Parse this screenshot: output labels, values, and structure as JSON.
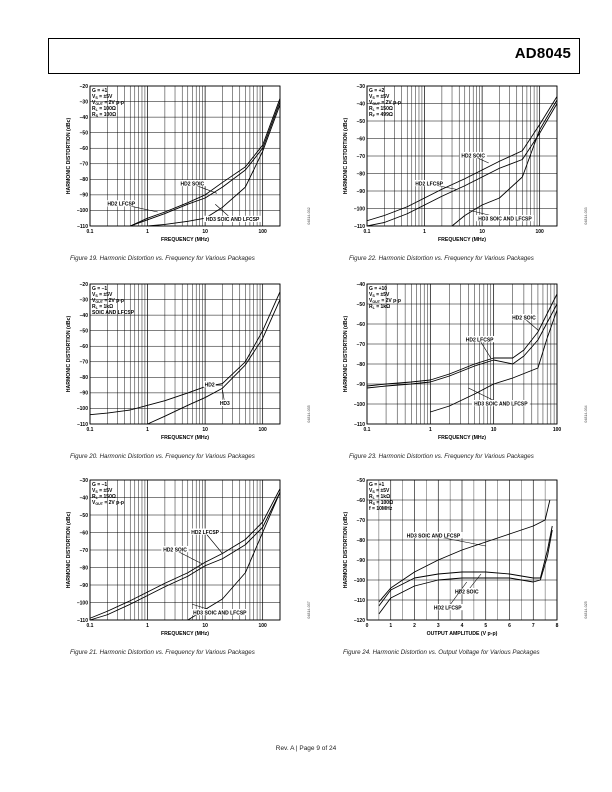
{
  "header": {
    "part_number": "AD8045"
  },
  "footer": {
    "text": "Rev. A | Page 9 of 24"
  },
  "chart_data": [
    {
      "type": "line",
      "id": "fig19",
      "xscale": "log",
      "xlim": [
        0.1,
        200
      ],
      "ylim": [
        -110,
        -20
      ],
      "xticks": [
        {
          "v": 0.1,
          "t": "0.1"
        },
        {
          "v": 1,
          "t": "1"
        },
        {
          "v": 10,
          "t": "10"
        },
        {
          "v": 100,
          "t": "100"
        }
      ],
      "yticks": [
        -110,
        -100,
        -90,
        -80,
        -70,
        -60,
        -50,
        -40,
        -30,
        -20
      ],
      "xlabel": "FREQUENCY (MHz)",
      "ylabel": "HARMONIC DISTORTION (dBc)",
      "conditions": [
        "G = +1",
        "VS = ±5V",
        "VOUT = 2V p-p",
        "RL = 100Ω",
        "RS = 100Ω"
      ],
      "code": "04814-032",
      "caption": "Figure 19. Harmonic Distortion vs. Frequency for Various Packages",
      "series": [
        {
          "name": "HD2 SOIC",
          "x": [
            0.5,
            1,
            2,
            5,
            10,
            20,
            50,
            100,
            200
          ],
          "y": [
            -110,
            -105,
            -101,
            -95,
            -90,
            -82,
            -72,
            -58,
            -28
          ]
        },
        {
          "name": "HD2 LFCSP",
          "x": [
            0.5,
            1,
            2,
            5,
            10,
            20,
            50,
            100,
            200
          ],
          "y": [
            -110,
            -106,
            -102,
            -96,
            -92,
            -85,
            -74,
            -60,
            -30
          ]
        },
        {
          "name": "HD3 SOIC AND LFCSP",
          "x": [
            1,
            2,
            5,
            10,
            20,
            50,
            100,
            200
          ],
          "y": [
            -110,
            -109,
            -107,
            -105,
            -98,
            -85,
            -62,
            -32
          ]
        }
      ],
      "annotations": [
        {
          "text": "HD2 SOIC",
          "x": 6,
          "y": -83,
          "px": 16,
          "py": -89
        },
        {
          "text": "HD2 LFCSP",
          "x": 0.35,
          "y": -96,
          "px": 1.5,
          "py": -101
        },
        {
          "text": "HD3 SOIC AND LFCSP",
          "x": 30,
          "y": -106,
          "px": 15,
          "py": -96
        }
      ]
    },
    {
      "type": "line",
      "id": "fig22",
      "xscale": "log",
      "xlim": [
        0.1,
        200
      ],
      "ylim": [
        -110,
        -30
      ],
      "xticks": [
        {
          "v": 0.1,
          "t": "0.1"
        },
        {
          "v": 1,
          "t": "1"
        },
        {
          "v": 10,
          "t": "10"
        },
        {
          "v": 100,
          "t": "100"
        }
      ],
      "yticks": [
        -110,
        -100,
        -90,
        -80,
        -70,
        -60,
        -50,
        -40,
        -30
      ],
      "xlabel": "FREQUENCY (MHz)",
      "ylabel": "HARMONIC DISTORTION (dBc)",
      "conditions": [
        "G = +2",
        "VS = ±5V",
        "VOUT = 2V p-p",
        "RL = 150Ω",
        "RF = 499Ω"
      ],
      "code": "04814-033",
      "caption": "Figure 22. Harmonic Distortion vs. Frequency for Various Packages",
      "series": [
        {
          "name": "HD2 SOIC",
          "x": [
            0.1,
            0.2,
            0.5,
            1,
            2,
            5,
            10,
            20,
            50,
            100,
            200
          ],
          "y": [
            -107,
            -104,
            -99,
            -94,
            -89,
            -83,
            -78,
            -73,
            -67,
            -52,
            -36
          ]
        },
        {
          "name": "HD2 LFCSP",
          "x": [
            0.1,
            0.2,
            0.5,
            1,
            2,
            5,
            10,
            20,
            50,
            100,
            200
          ],
          "y": [
            -110,
            -108,
            -103,
            -98,
            -93,
            -87,
            -82,
            -77,
            -72,
            -57,
            -40
          ]
        },
        {
          "name": "HD3 SOIC AND LFCSP",
          "x": [
            3,
            5,
            10,
            20,
            50,
            100,
            200
          ],
          "y": [
            -110,
            -104,
            -98,
            -94,
            -82,
            -55,
            -38
          ]
        }
      ],
      "annotations": [
        {
          "text": "HD2 SOIC",
          "x": 7,
          "y": -70,
          "px": 13,
          "py": -74
        },
        {
          "text": "HD2 LFCSP",
          "x": 1.2,
          "y": -86,
          "px": 3.5,
          "py": -89
        },
        {
          "text": "HD3 SOIC AND LFCSP",
          "x": 25,
          "y": -106,
          "px": 6,
          "py": -101
        }
      ]
    },
    {
      "type": "line",
      "id": "fig20",
      "xscale": "log",
      "xlim": [
        0.1,
        200
      ],
      "ylim": [
        -110,
        -20
      ],
      "xticks": [
        {
          "v": 0.1,
          "t": "0.1"
        },
        {
          "v": 1,
          "t": "1"
        },
        {
          "v": 10,
          "t": "10"
        },
        {
          "v": 100,
          "t": "100"
        }
      ],
      "yticks": [
        -110,
        -100,
        -90,
        -80,
        -70,
        -60,
        -50,
        -40,
        -30,
        -20
      ],
      "xlabel": "FREQUENCY (MHz)",
      "ylabel": "HARMONIC DISTORTION (dBc)",
      "conditions": [
        "G = –1",
        "VS = ±5V",
        "VOUT = 2V p-p",
        "RL = 1kΩ",
        "SOIC AND LFCSP"
      ],
      "code": "04814-035",
      "caption": "Figure 20. Harmonic Distortion vs. Frequency for Various Packages",
      "series": [
        {
          "name": "HD2",
          "x": [
            0.1,
            0.2,
            0.5,
            1,
            2,
            5,
            10,
            20,
            50,
            100,
            200
          ],
          "y": [
            -104,
            -103,
            -101,
            -98,
            -95,
            -90,
            -86,
            -84,
            -70,
            -50,
            -25
          ]
        },
        {
          "name": "HD3",
          "x": [
            1,
            2,
            5,
            10,
            20,
            50,
            100,
            200
          ],
          "y": [
            -110,
            -105,
            -98,
            -93,
            -87,
            -72,
            -55,
            -30
          ]
        }
      ],
      "annotations": [
        {
          "text": "HD2",
          "x": 12,
          "y": -85,
          "px": 20,
          "py": -85
        },
        {
          "text": "HD3",
          "x": 22,
          "y": -97,
          "px": 20,
          "py": -88
        }
      ]
    },
    {
      "type": "line",
      "id": "fig23",
      "xscale": "log",
      "xlim": [
        0.1,
        100
      ],
      "ylim": [
        -110,
        -40
      ],
      "xticks": [
        {
          "v": 0.1,
          "t": "0.1"
        },
        {
          "v": 1,
          "t": "1"
        },
        {
          "v": 10,
          "t": "10"
        },
        {
          "v": 100,
          "t": "100"
        }
      ],
      "yticks": [
        -110,
        -100,
        -90,
        -80,
        -70,
        -60,
        -50,
        -40
      ],
      "xlabel": "FREQUENCY (MHz)",
      "ylabel": "HARMONIC DISTORTION (dBc)",
      "conditions": [
        "G = +10",
        "VS = ±5V",
        "VOUT = 2V p-p",
        "RL = 1kΩ"
      ],
      "code": "04814-034",
      "caption": "Figure 23. Harmonic Distortion vs. Frequency for Various Packages",
      "series": [
        {
          "name": "HD2 SOIC",
          "x": [
            0.1,
            0.2,
            0.5,
            1,
            2,
            5,
            10,
            20,
            30,
            50,
            100
          ],
          "y": [
            -91,
            -90,
            -89,
            -88,
            -85,
            -80,
            -77,
            -77,
            -73,
            -64,
            -45
          ]
        },
        {
          "name": "HD2 LFCSP",
          "x": [
            0.1,
            0.2,
            0.5,
            1,
            2,
            5,
            10,
            20,
            30,
            50,
            100
          ],
          "y": [
            -92,
            -91,
            -90,
            -89,
            -86,
            -81,
            -78,
            -80,
            -76,
            -68,
            -50
          ]
        },
        {
          "name": "HD3 SOIC AND LFCSP",
          "x": [
            1,
            2,
            5,
            10,
            20,
            50,
            70,
            100
          ],
          "y": [
            -104,
            -101,
            -95,
            -90,
            -87,
            -82,
            -67,
            -53
          ]
        }
      ],
      "annotations": [
        {
          "text": "HD2 SOIC",
          "x": 30,
          "y": -57,
          "px": 50,
          "py": -63
        },
        {
          "text": "HD2 LFCSP",
          "x": 6,
          "y": -68,
          "px": 9,
          "py": -77
        },
        {
          "text": "HD3 SOIC AND LFCSP",
          "x": 13,
          "y": -100,
          "px": 4,
          "py": -92
        }
      ]
    },
    {
      "type": "line",
      "id": "fig21",
      "xscale": "log",
      "xlim": [
        0.1,
        200
      ],
      "ylim": [
        -110,
        -30
      ],
      "xticks": [
        {
          "v": 0.1,
          "t": "0.1"
        },
        {
          "v": 1,
          "t": "1"
        },
        {
          "v": 10,
          "t": "10"
        },
        {
          "v": 100,
          "t": "100"
        }
      ],
      "yticks": [
        -110,
        -100,
        -90,
        -80,
        -70,
        -60,
        -50,
        -40,
        -30
      ],
      "xlabel": "FREQUENCY (MHz)",
      "ylabel": "HARMONIC DISTORTION (dBc)",
      "conditions": [
        "G = –1",
        "VS = ±5V",
        "RL = 150Ω",
        "VOUT = 2V p-p"
      ],
      "code": "04814-037",
      "caption": "Figure 21. Harmonic Distortion vs. Frequency for Various Packages",
      "series": [
        {
          "name": "HD2 LFCSP",
          "x": [
            0.1,
            0.2,
            0.5,
            1,
            2,
            5,
            10,
            20,
            50,
            100,
            200
          ],
          "y": [
            -109,
            -105,
            -99,
            -94,
            -89,
            -83,
            -77,
            -72,
            -64,
            -54,
            -35
          ]
        },
        {
          "name": "HD2 SOIC",
          "x": [
            0.1,
            0.2,
            0.5,
            1,
            2,
            5,
            10,
            20,
            50,
            100,
            200
          ],
          "y": [
            -110,
            -107,
            -101,
            -96,
            -91,
            -85,
            -79,
            -75,
            -67,
            -57,
            -37
          ]
        },
        {
          "name": "HD3 SOIC AND LFCSP",
          "x": [
            5,
            10,
            20,
            50,
            100,
            200
          ],
          "y": [
            -110,
            -104,
            -98,
            -83,
            -60,
            -37
          ]
        }
      ],
      "annotations": [
        {
          "text": "HD2 LFCSP",
          "x": 10,
          "y": -60,
          "px": 20,
          "py": -72
        },
        {
          "text": "HD2 SOIC",
          "x": 3,
          "y": -70,
          "px": 9,
          "py": -78
        },
        {
          "text": "HD3 SOIC AND LFCSP",
          "x": 18,
          "y": -106,
          "px": 6,
          "py": -101
        }
      ]
    },
    {
      "type": "line",
      "id": "fig24",
      "xscale": "linear",
      "xlim": [
        0,
        8
      ],
      "ylim": [
        -120,
        -50
      ],
      "xticks": [
        {
          "v": 0,
          "t": "0"
        },
        {
          "v": 1,
          "t": "1"
        },
        {
          "v": 2,
          "t": "2"
        },
        {
          "v": 3,
          "t": "3"
        },
        {
          "v": 4,
          "t": "4"
        },
        {
          "v": 5,
          "t": "5"
        },
        {
          "v": 6,
          "t": "6"
        },
        {
          "v": 7,
          "t": "7"
        },
        {
          "v": 8,
          "t": "8"
        }
      ],
      "yticks": [
        -120,
        -110,
        -100,
        -90,
        -80,
        -70,
        -60,
        -50
      ],
      "xlabel": "OUTPUT AMPLITUDE (V p-p)",
      "ylabel": "HARMONIC DISTORTION (dBc)",
      "conditions": [
        "G = +1",
        "VS = ±5V",
        "RL = 1kΩ",
        "RS = 100Ω",
        "f = 10MHz"
      ],
      "code": "04814-025",
      "caption": "Figure 24. Harmonic Distortion vs. Output Voltage for Various Packages",
      "series": [
        {
          "name": "HD3 SOIC AND LFCSP",
          "x": [
            0.5,
            1,
            2,
            3,
            4,
            5,
            6,
            7,
            7.5,
            7.7
          ],
          "y": [
            -111,
            -104,
            -96,
            -90,
            -85,
            -81,
            -77,
            -73,
            -70,
            -60
          ]
        },
        {
          "name": "HD2 SOIC",
          "x": [
            0.5,
            1,
            2,
            3,
            4,
            5,
            6,
            6.5,
            7,
            7.3,
            7.6,
            7.8
          ],
          "y": [
            -113,
            -105,
            -99,
            -97,
            -96,
            -96,
            -97,
            -98,
            -99,
            -99,
            -85,
            -73
          ]
        },
        {
          "name": "HD2 LFCSP",
          "x": [
            0.5,
            1,
            2,
            3,
            4,
            5,
            6,
            6.5,
            7,
            7.3,
            7.6,
            7.8
          ],
          "y": [
            -117,
            -109,
            -103,
            -100,
            -99,
            -99,
            -99,
            -100,
            -101,
            -100,
            -88,
            -75
          ]
        }
      ],
      "annotations": [
        {
          "text": "HD3 SOIC AND LFCSP",
          "x": 2.8,
          "y": -78,
          "px": 5,
          "py": -83
        },
        {
          "text": "HD2 SOIC",
          "x": 4.2,
          "y": -106,
          "px": 4.8,
          "py": -97
        },
        {
          "text": "HD2 LFCSP",
          "x": 3.4,
          "y": -114,
          "px": 4.2,
          "py": -101
        }
      ]
    }
  ]
}
